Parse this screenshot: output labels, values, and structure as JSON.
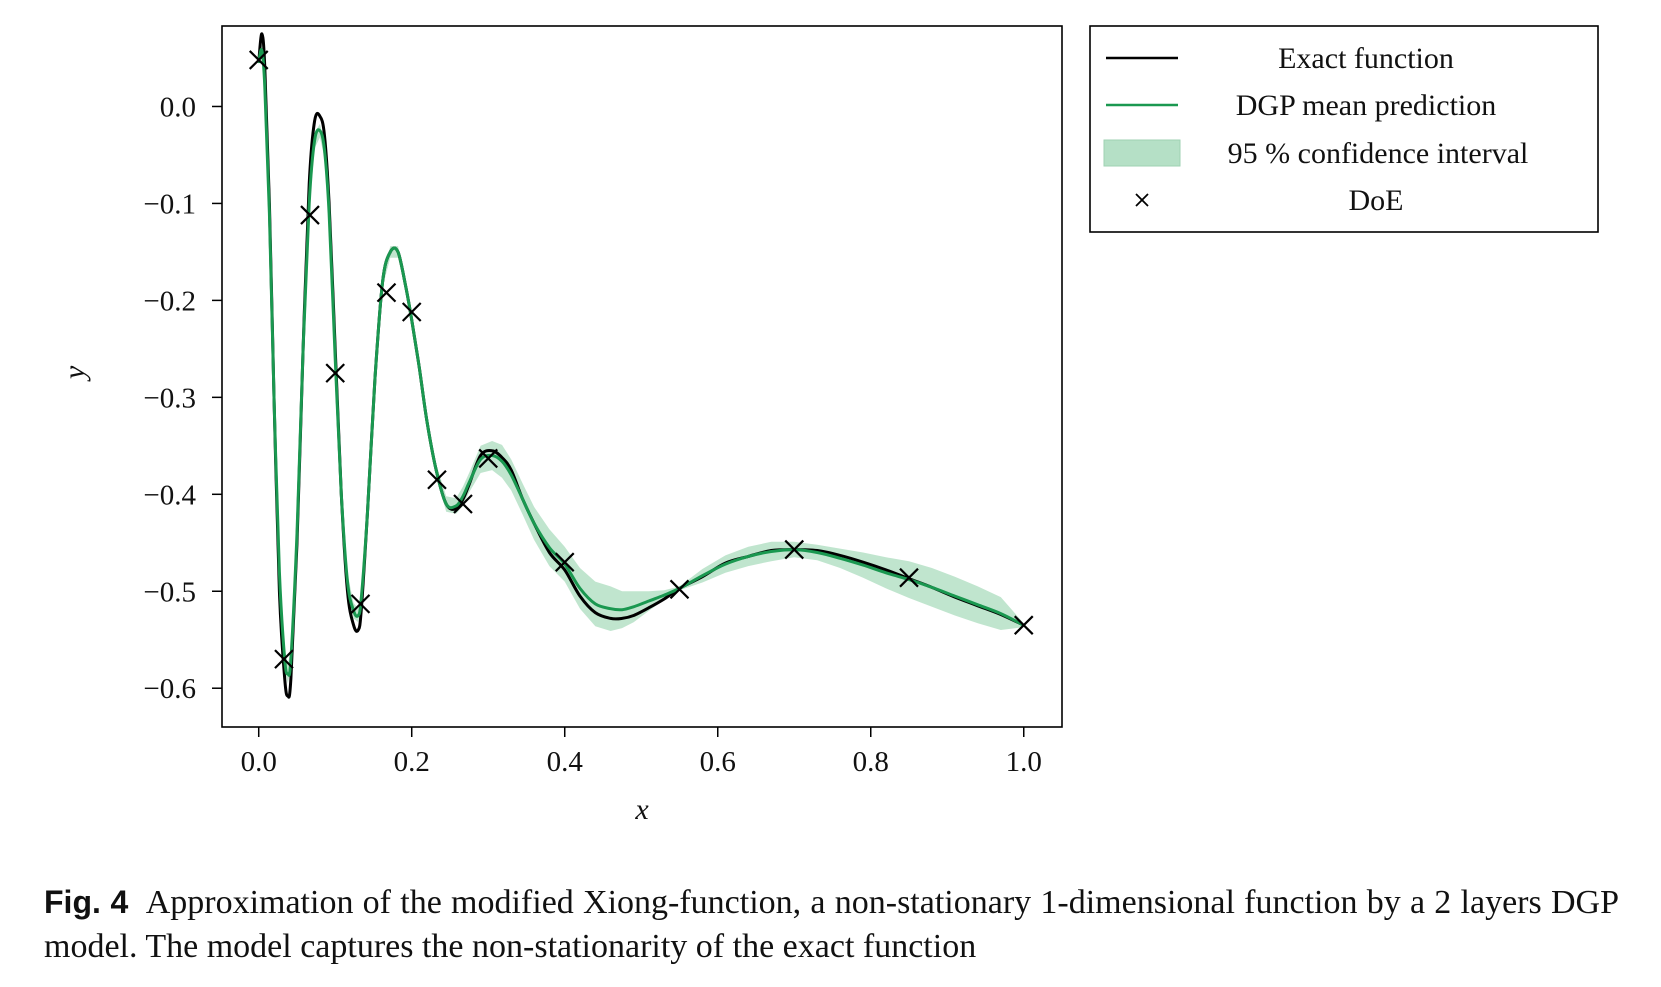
{
  "chart_data": {
    "type": "line",
    "xlabel": "x",
    "ylabel": "y",
    "xlim": [
      -0.048,
      1.05
    ],
    "ylim": [
      -0.64,
      0.083
    ],
    "xticks": [
      0.0,
      0.2,
      0.4,
      0.6,
      0.8,
      1.0
    ],
    "xtick_labels": [
      "0.0",
      "0.2",
      "0.4",
      "0.6",
      "0.8",
      "1.0"
    ],
    "yticks": [
      0.0,
      -0.1,
      -0.2,
      -0.3,
      -0.4,
      -0.5,
      -0.6
    ],
    "ytick_labels": [
      "0.0",
      "−0.1",
      "−0.2",
      "−0.3",
      "−0.4",
      "−0.5",
      "−0.6"
    ],
    "grid": false,
    "legend_position": "outside-right-top",
    "colors": {
      "exact": "#000000",
      "mean": "#1a9850",
      "band": "#b5e0c6"
    },
    "series": [
      {
        "name": "Exact function",
        "x": [
          0.0,
          0.004,
          0.008,
          0.014,
          0.02,
          0.027,
          0.034,
          0.038,
          0.042,
          0.05,
          0.058,
          0.066,
          0.073,
          0.08,
          0.086,
          0.092,
          0.1,
          0.108,
          0.116,
          0.124,
          0.13,
          0.134,
          0.142,
          0.152,
          0.162,
          0.172,
          0.182,
          0.192,
          0.2,
          0.21,
          0.22,
          0.232,
          0.245,
          0.258,
          0.267,
          0.275,
          0.29,
          0.305,
          0.318,
          0.33,
          0.345,
          0.36,
          0.38,
          0.4,
          0.42,
          0.44,
          0.46,
          0.475,
          0.49,
          0.51,
          0.53,
          0.55,
          0.58,
          0.61,
          0.64,
          0.67,
          0.7,
          0.73,
          0.76,
          0.79,
          0.82,
          0.85,
          0.88,
          0.91,
          0.94,
          0.97,
          1.0
        ],
        "y": [
          0.045,
          0.075,
          0.04,
          -0.1,
          -0.3,
          -0.5,
          -0.59,
          -0.608,
          -0.59,
          -0.45,
          -0.25,
          -0.08,
          -0.015,
          -0.01,
          -0.03,
          -0.1,
          -0.25,
          -0.4,
          -0.5,
          -0.535,
          -0.54,
          -0.52,
          -0.42,
          -0.28,
          -0.18,
          -0.15,
          -0.15,
          -0.185,
          -0.22,
          -0.27,
          -0.325,
          -0.375,
          -0.41,
          -0.415,
          -0.405,
          -0.39,
          -0.36,
          -0.355,
          -0.362,
          -0.375,
          -0.405,
          -0.43,
          -0.46,
          -0.478,
          -0.505,
          -0.522,
          -0.528,
          -0.528,
          -0.525,
          -0.517,
          -0.508,
          -0.497,
          -0.485,
          -0.471,
          -0.464,
          -0.458,
          -0.457,
          -0.458,
          -0.463,
          -0.47,
          -0.478,
          -0.487,
          -0.496,
          -0.506,
          -0.515,
          -0.524,
          -0.535
        ]
      },
      {
        "name": "DGP mean prediction",
        "x": [
          0.0,
          0.004,
          0.008,
          0.014,
          0.02,
          0.027,
          0.034,
          0.038,
          0.042,
          0.05,
          0.058,
          0.066,
          0.073,
          0.08,
          0.086,
          0.092,
          0.1,
          0.108,
          0.116,
          0.124,
          0.13,
          0.134,
          0.142,
          0.152,
          0.162,
          0.172,
          0.182,
          0.192,
          0.2,
          0.21,
          0.22,
          0.232,
          0.245,
          0.258,
          0.267,
          0.275,
          0.29,
          0.305,
          0.318,
          0.33,
          0.345,
          0.36,
          0.38,
          0.4,
          0.42,
          0.44,
          0.46,
          0.475,
          0.49,
          0.51,
          0.53,
          0.55,
          0.58,
          0.61,
          0.64,
          0.67,
          0.7,
          0.73,
          0.76,
          0.79,
          0.82,
          0.85,
          0.88,
          0.91,
          0.94,
          0.97,
          1.0
        ],
        "y": [
          0.045,
          0.058,
          0.02,
          -0.11,
          -0.3,
          -0.48,
          -0.57,
          -0.585,
          -0.57,
          -0.44,
          -0.25,
          -0.1,
          -0.035,
          -0.025,
          -0.045,
          -0.11,
          -0.26,
          -0.4,
          -0.49,
          -0.52,
          -0.525,
          -0.508,
          -0.42,
          -0.28,
          -0.18,
          -0.15,
          -0.15,
          -0.185,
          -0.22,
          -0.27,
          -0.325,
          -0.375,
          -0.41,
          -0.412,
          -0.402,
          -0.388,
          -0.364,
          -0.36,
          -0.366,
          -0.38,
          -0.405,
          -0.43,
          -0.455,
          -0.472,
          -0.497,
          -0.513,
          -0.518,
          -0.519,
          -0.516,
          -0.51,
          -0.504,
          -0.497,
          -0.484,
          -0.472,
          -0.464,
          -0.459,
          -0.457,
          -0.46,
          -0.466,
          -0.473,
          -0.481,
          -0.488,
          -0.496,
          -0.505,
          -0.514,
          -0.523,
          -0.535
        ]
      },
      {
        "name": "95 % confidence interval",
        "x": [
          0.0,
          0.004,
          0.008,
          0.014,
          0.02,
          0.027,
          0.034,
          0.038,
          0.042,
          0.05,
          0.058,
          0.066,
          0.073,
          0.08,
          0.086,
          0.092,
          0.1,
          0.108,
          0.116,
          0.124,
          0.13,
          0.134,
          0.142,
          0.152,
          0.162,
          0.172,
          0.182,
          0.192,
          0.2,
          0.21,
          0.22,
          0.232,
          0.245,
          0.258,
          0.267,
          0.275,
          0.29,
          0.305,
          0.318,
          0.33,
          0.345,
          0.36,
          0.38,
          0.4,
          0.42,
          0.44,
          0.46,
          0.475,
          0.49,
          0.51,
          0.53,
          0.55,
          0.58,
          0.61,
          0.64,
          0.67,
          0.7,
          0.73,
          0.76,
          0.79,
          0.82,
          0.85,
          0.88,
          0.91,
          0.94,
          0.97,
          1.0
        ],
        "lower": [
          0.043,
          0.052,
          0.012,
          -0.12,
          -0.31,
          -0.49,
          -0.58,
          -0.595,
          -0.58,
          -0.45,
          -0.26,
          -0.108,
          -0.043,
          -0.032,
          -0.053,
          -0.118,
          -0.268,
          -0.408,
          -0.498,
          -0.528,
          -0.532,
          -0.514,
          -0.428,
          -0.288,
          -0.186,
          -0.156,
          -0.156,
          -0.191,
          -0.226,
          -0.278,
          -0.333,
          -0.381,
          -0.418,
          -0.42,
          -0.412,
          -0.398,
          -0.378,
          -0.375,
          -0.383,
          -0.396,
          -0.421,
          -0.447,
          -0.474,
          -0.49,
          -0.518,
          -0.536,
          -0.541,
          -0.538,
          -0.532,
          -0.52,
          -0.509,
          -0.499,
          -0.491,
          -0.481,
          -0.474,
          -0.469,
          -0.465,
          -0.468,
          -0.476,
          -0.486,
          -0.497,
          -0.507,
          -0.516,
          -0.525,
          -0.533,
          -0.54,
          -0.537
        ],
        "upper": [
          0.047,
          0.064,
          0.028,
          -0.1,
          -0.29,
          -0.47,
          -0.56,
          -0.575,
          -0.56,
          -0.43,
          -0.24,
          -0.092,
          -0.027,
          -0.018,
          -0.037,
          -0.102,
          -0.252,
          -0.392,
          -0.482,
          -0.512,
          -0.518,
          -0.502,
          -0.412,
          -0.272,
          -0.174,
          -0.144,
          -0.144,
          -0.179,
          -0.214,
          -0.262,
          -0.317,
          -0.369,
          -0.402,
          -0.404,
          -0.392,
          -0.378,
          -0.35,
          -0.345,
          -0.349,
          -0.364,
          -0.389,
          -0.413,
          -0.436,
          -0.454,
          -0.476,
          -0.49,
          -0.495,
          -0.5,
          -0.5,
          -0.5,
          -0.499,
          -0.495,
          -0.477,
          -0.463,
          -0.454,
          -0.449,
          -0.449,
          -0.452,
          -0.456,
          -0.46,
          -0.465,
          -0.469,
          -0.476,
          -0.485,
          -0.495,
          -0.506,
          -0.533
        ]
      },
      {
        "name": "DoE",
        "x": [
          0.0,
          0.033,
          0.067,
          0.1,
          0.133,
          0.167,
          0.2,
          0.233,
          0.267,
          0.3,
          0.4,
          0.55,
          0.7,
          0.85,
          1.0
        ],
        "y": [
          0.048,
          -0.57,
          -0.112,
          -0.275,
          -0.513,
          -0.192,
          -0.212,
          -0.385,
          -0.41,
          -0.363,
          -0.47,
          -0.498,
          -0.457,
          -0.486,
          -0.535
        ]
      }
    ]
  },
  "legend": {
    "items": [
      "Exact function",
      "DGP mean prediction",
      "95 % confidence interval",
      "DoE"
    ]
  },
  "caption": {
    "label": "Fig. 4",
    "text": "Approximation of the modified Xiong-function, a non-stationary 1-dimensional function by a 2 layers DGP model. The model captures the non-stationarity of the exact function"
  }
}
